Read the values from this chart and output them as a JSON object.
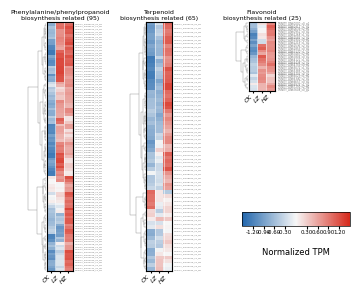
{
  "title1": "Phenylalanine/phenylpropanoid\nbiosynthesis related (95)",
  "title2": "Terpenoid\nbiosynthesis related (65)",
  "title3": "Flavonoid\nbiosynthesis related (25)",
  "n1": 95,
  "n2": 65,
  "n3": 25,
  "col_labels": [
    "CK",
    "LZ",
    "HZ"
  ],
  "colorbar_ticks": [
    -1.2,
    -0.9,
    -0.6,
    -0.3,
    0.3,
    0.6,
    0.9,
    1.2
  ],
  "colorbar_label": "Normalized TPM",
  "cmap_min": -1.5,
  "cmap_max": 1.5,
  "bg_color": "#ffffff",
  "dend_color": "#888888",
  "label_color": "#777777",
  "title_fontsize": 4.5,
  "tick_fontsize": 4.5,
  "label_fontsize": 1.6,
  "cb_fontsize": 4.0,
  "cb_label_fontsize": 6.0
}
